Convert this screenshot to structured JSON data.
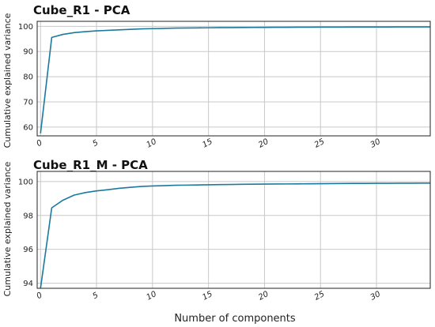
{
  "colors": {
    "line": "#1a7a9e",
    "grid": "#c8c8c8",
    "frame": "#222222",
    "background": "#ffffff"
  },
  "xlabel": "Number of components",
  "chart_data": [
    {
      "type": "line",
      "title": "Cube_R1 - PCA",
      "xlabel": "",
      "ylabel": "Cumulative explained variance",
      "xlim": [
        -0.3,
        34.8
      ],
      "ylim": [
        56.5,
        102
      ],
      "xticks": [
        0,
        5,
        10,
        15,
        20,
        25,
        30
      ],
      "yticks": [
        60,
        70,
        80,
        90,
        100
      ],
      "grid": true,
      "series": [
        {
          "x": [
            0,
            1,
            2,
            3,
            4,
            5,
            6,
            7,
            8,
            9,
            10,
            11,
            12,
            13,
            14,
            15,
            16,
            17,
            18,
            19,
            20,
            21,
            22,
            23,
            24,
            25,
            26,
            27,
            28,
            29,
            30,
            31,
            32,
            33,
            34,
            35
          ],
          "values": [
            57.5,
            95.6,
            96.8,
            97.5,
            97.9,
            98.2,
            98.4,
            98.6,
            98.8,
            99.0,
            99.1,
            99.2,
            99.3,
            99.35,
            99.4,
            99.45,
            99.5,
            99.52,
            99.55,
            99.57,
            99.6,
            99.62,
            99.64,
            99.66,
            99.68,
            99.7,
            99.71,
            99.72,
            99.73,
            99.74,
            99.75,
            99.76,
            99.77,
            99.78,
            99.79,
            99.8
          ]
        }
      ]
    },
    {
      "type": "line",
      "title": "Cube_R1_M - PCA",
      "xlabel": "Number of components",
      "ylabel": "Cumulative explained variance",
      "xlim": [
        -0.3,
        34.8
      ],
      "ylim": [
        93.7,
        100.6
      ],
      "xticks": [
        0,
        5,
        10,
        15,
        20,
        25,
        30
      ],
      "yticks": [
        94,
        96,
        98,
        100
      ],
      "grid": true,
      "series": [
        {
          "x": [
            0,
            1,
            2,
            3,
            4,
            5,
            6,
            7,
            8,
            9,
            10,
            11,
            12,
            13,
            14,
            15,
            16,
            17,
            18,
            19,
            20,
            21,
            22,
            23,
            24,
            25,
            26,
            27,
            28,
            29,
            30,
            31,
            32,
            33,
            34,
            35
          ],
          "values": [
            93.7,
            98.45,
            98.9,
            99.2,
            99.35,
            99.45,
            99.52,
            99.6,
            99.66,
            99.71,
            99.74,
            99.76,
            99.78,
            99.79,
            99.8,
            99.81,
            99.82,
            99.83,
            99.84,
            99.845,
            99.85,
            99.855,
            99.86,
            99.865,
            99.87,
            99.875,
            99.88,
            99.885,
            99.89,
            99.893,
            99.896,
            99.899,
            99.902,
            99.905,
            99.908,
            99.91
          ]
        }
      ]
    }
  ]
}
